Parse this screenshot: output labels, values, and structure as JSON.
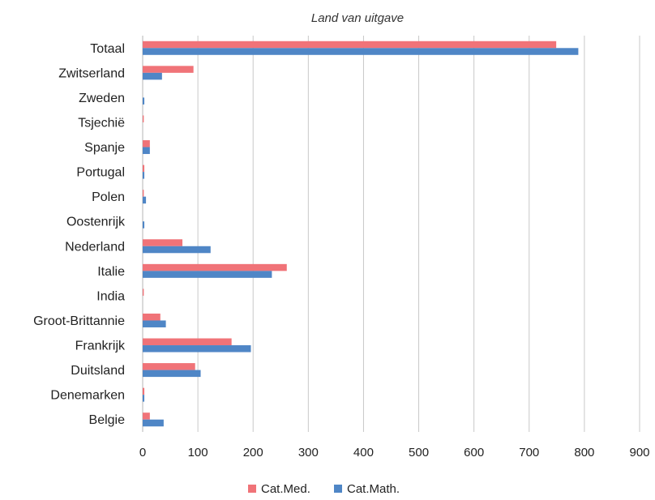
{
  "chart_data": {
    "type": "bar",
    "orientation": "horizontal",
    "title": "Land van uitgave",
    "xlabel": "",
    "ylabel": "",
    "xlim": [
      0,
      900
    ],
    "xticks": [
      0,
      100,
      200,
      300,
      400,
      500,
      600,
      700,
      800,
      900
    ],
    "grid": "vertical",
    "legend_position": "bottom",
    "categories": [
      "Totaal",
      "Zwitserland",
      "Zweden",
      "Tsjechië",
      "Spanje",
      "Portugal",
      "Polen",
      "Oostenrijk",
      "Nederland",
      "Italie",
      "India",
      "Groot-Brittannie",
      "Frankrijk",
      "Duitsland",
      "Denemarken",
      "Belgie"
    ],
    "series": [
      {
        "name": "Cat.Med.",
        "color": "#f07378",
        "values": [
          749,
          92,
          0,
          2,
          13,
          3,
          2,
          0,
          72,
          261,
          2,
          32,
          161,
          95,
          3,
          13
        ]
      },
      {
        "name": "Cat.Math.",
        "color": "#4f86c6",
        "values": [
          789,
          35,
          3,
          0,
          13,
          3,
          6,
          3,
          123,
          234,
          0,
          42,
          196,
          105,
          3,
          38
        ]
      }
    ]
  }
}
